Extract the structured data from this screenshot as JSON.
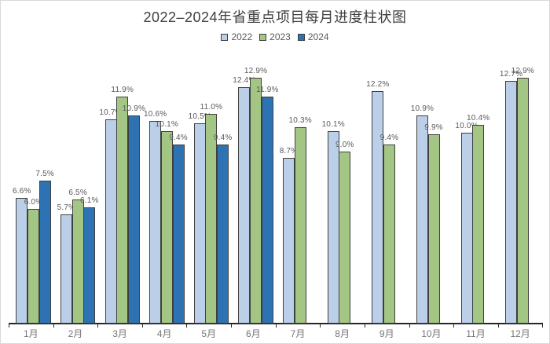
{
  "title": "2022–2024年省重点项目每月进度柱状图",
  "chart_data": {
    "type": "bar",
    "title": "2022–2024年省重点项目每月进度柱状图",
    "categories": [
      "1月",
      "2月",
      "3月",
      "4月",
      "5月",
      "6月",
      "7月",
      "8月",
      "9月",
      "10月",
      "11月",
      "12月"
    ],
    "series": [
      {
        "name": "2022",
        "color": "#BCCFE8",
        "values": [
          6.6,
          5.7,
          10.7,
          10.6,
          10.5,
          12.4,
          8.7,
          10.1,
          12.2,
          10.9,
          10.0,
          12.7
        ]
      },
      {
        "name": "2023",
        "color": "#A4C685",
        "values": [
          6.0,
          6.5,
          11.9,
          10.1,
          11.0,
          12.9,
          10.3,
          9.0,
          9.4,
          9.9,
          10.4,
          12.9
        ]
      },
      {
        "name": "2024",
        "color": "#2D73B4",
        "values": [
          7.5,
          6.1,
          10.9,
          9.4,
          9.4,
          11.9,
          null,
          null,
          null,
          null,
          null,
          null
        ]
      }
    ],
    "value_suffix": "%",
    "data_labels": true,
    "ylim": [
      0,
      13.5
    ],
    "grid": false,
    "legend_position": "top-center",
    "x_axis": {
      "line": true,
      "ticks": true
    },
    "y_axis": {
      "visible": false
    }
  },
  "colors": {
    "background": "#FFFFFF",
    "canvas_border": "#D9D9D9",
    "title_text": "#404040",
    "legend_text": "#595959",
    "data_label_text": "#595959",
    "category_label_text": "#757575",
    "axis_line": "#262626",
    "bar_outline": "#3F3F3F"
  }
}
